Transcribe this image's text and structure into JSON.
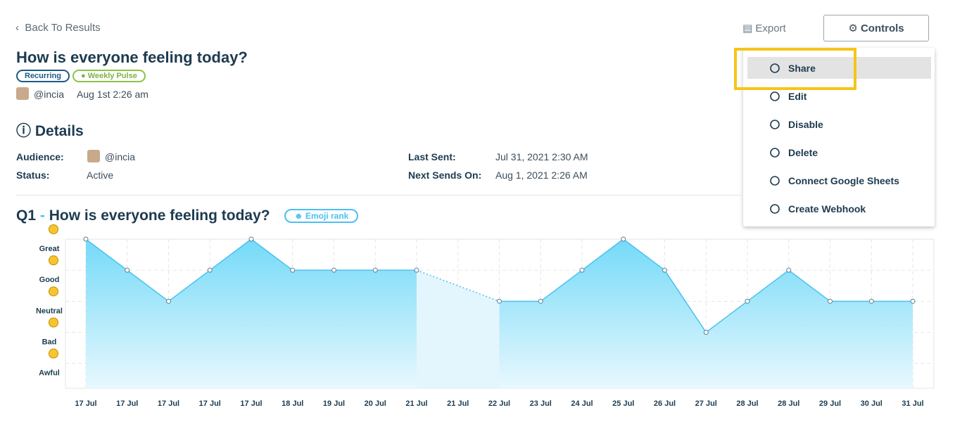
{
  "header": {
    "back": "Back To Results",
    "export": "Export",
    "controls": "Controls",
    "title": "How is everyone feeling today?",
    "tags": [
      "Recurring",
      "Weekly Pulse"
    ],
    "author": "@incia",
    "date": "Aug 1st 2:26 am"
  },
  "details": {
    "heading": "Details",
    "audience_label": "Audience:",
    "audience": "@incia",
    "status_label": "Status:",
    "status": "Active",
    "last_sent_label": "Last Sent:",
    "last_sent": "Jul 31, 2021 2:30 AM",
    "next_label": "Next Sends On:",
    "next": "Aug 1, 2021 2:26 AM"
  },
  "question": {
    "number": "Q1",
    "text": "How is everyone feeling today?",
    "badge": "Emoji rank"
  },
  "menu": {
    "items": [
      "Share",
      "Edit",
      "Disable",
      "Delete",
      "Connect Google Sheets",
      "Create Webhook"
    ]
  },
  "chart_data": {
    "type": "area",
    "categories": [
      "17 Jul",
      "17 Jul",
      "17 Jul",
      "17 Jul",
      "17 Jul",
      "18 Jul",
      "19 Jul",
      "20 Jul",
      "21 Jul",
      "21 Jul",
      "22 Jul",
      "23 Jul",
      "24 Jul",
      "25 Jul",
      "26 Jul",
      "27 Jul",
      "28 Jul",
      "28 Jul",
      "29 Jul",
      "30 Jul",
      "31 Jul"
    ],
    "values": [
      5,
      4,
      3,
      4,
      5,
      4,
      4,
      4,
      4,
      null,
      3,
      3,
      4,
      5,
      4,
      2,
      3,
      4,
      3,
      3,
      3
    ],
    "color": "#4cc0f0",
    "ylim": [
      0.2,
      5
    ],
    "yticks": [
      {
        "value": 1,
        "label": "Awful"
      },
      {
        "value": 2,
        "label": "Bad"
      },
      {
        "value": 3,
        "label": "Neutral"
      },
      {
        "value": 4,
        "label": "Good"
      },
      {
        "value": 5,
        "label": "Great"
      }
    ],
    "grid": true
  }
}
